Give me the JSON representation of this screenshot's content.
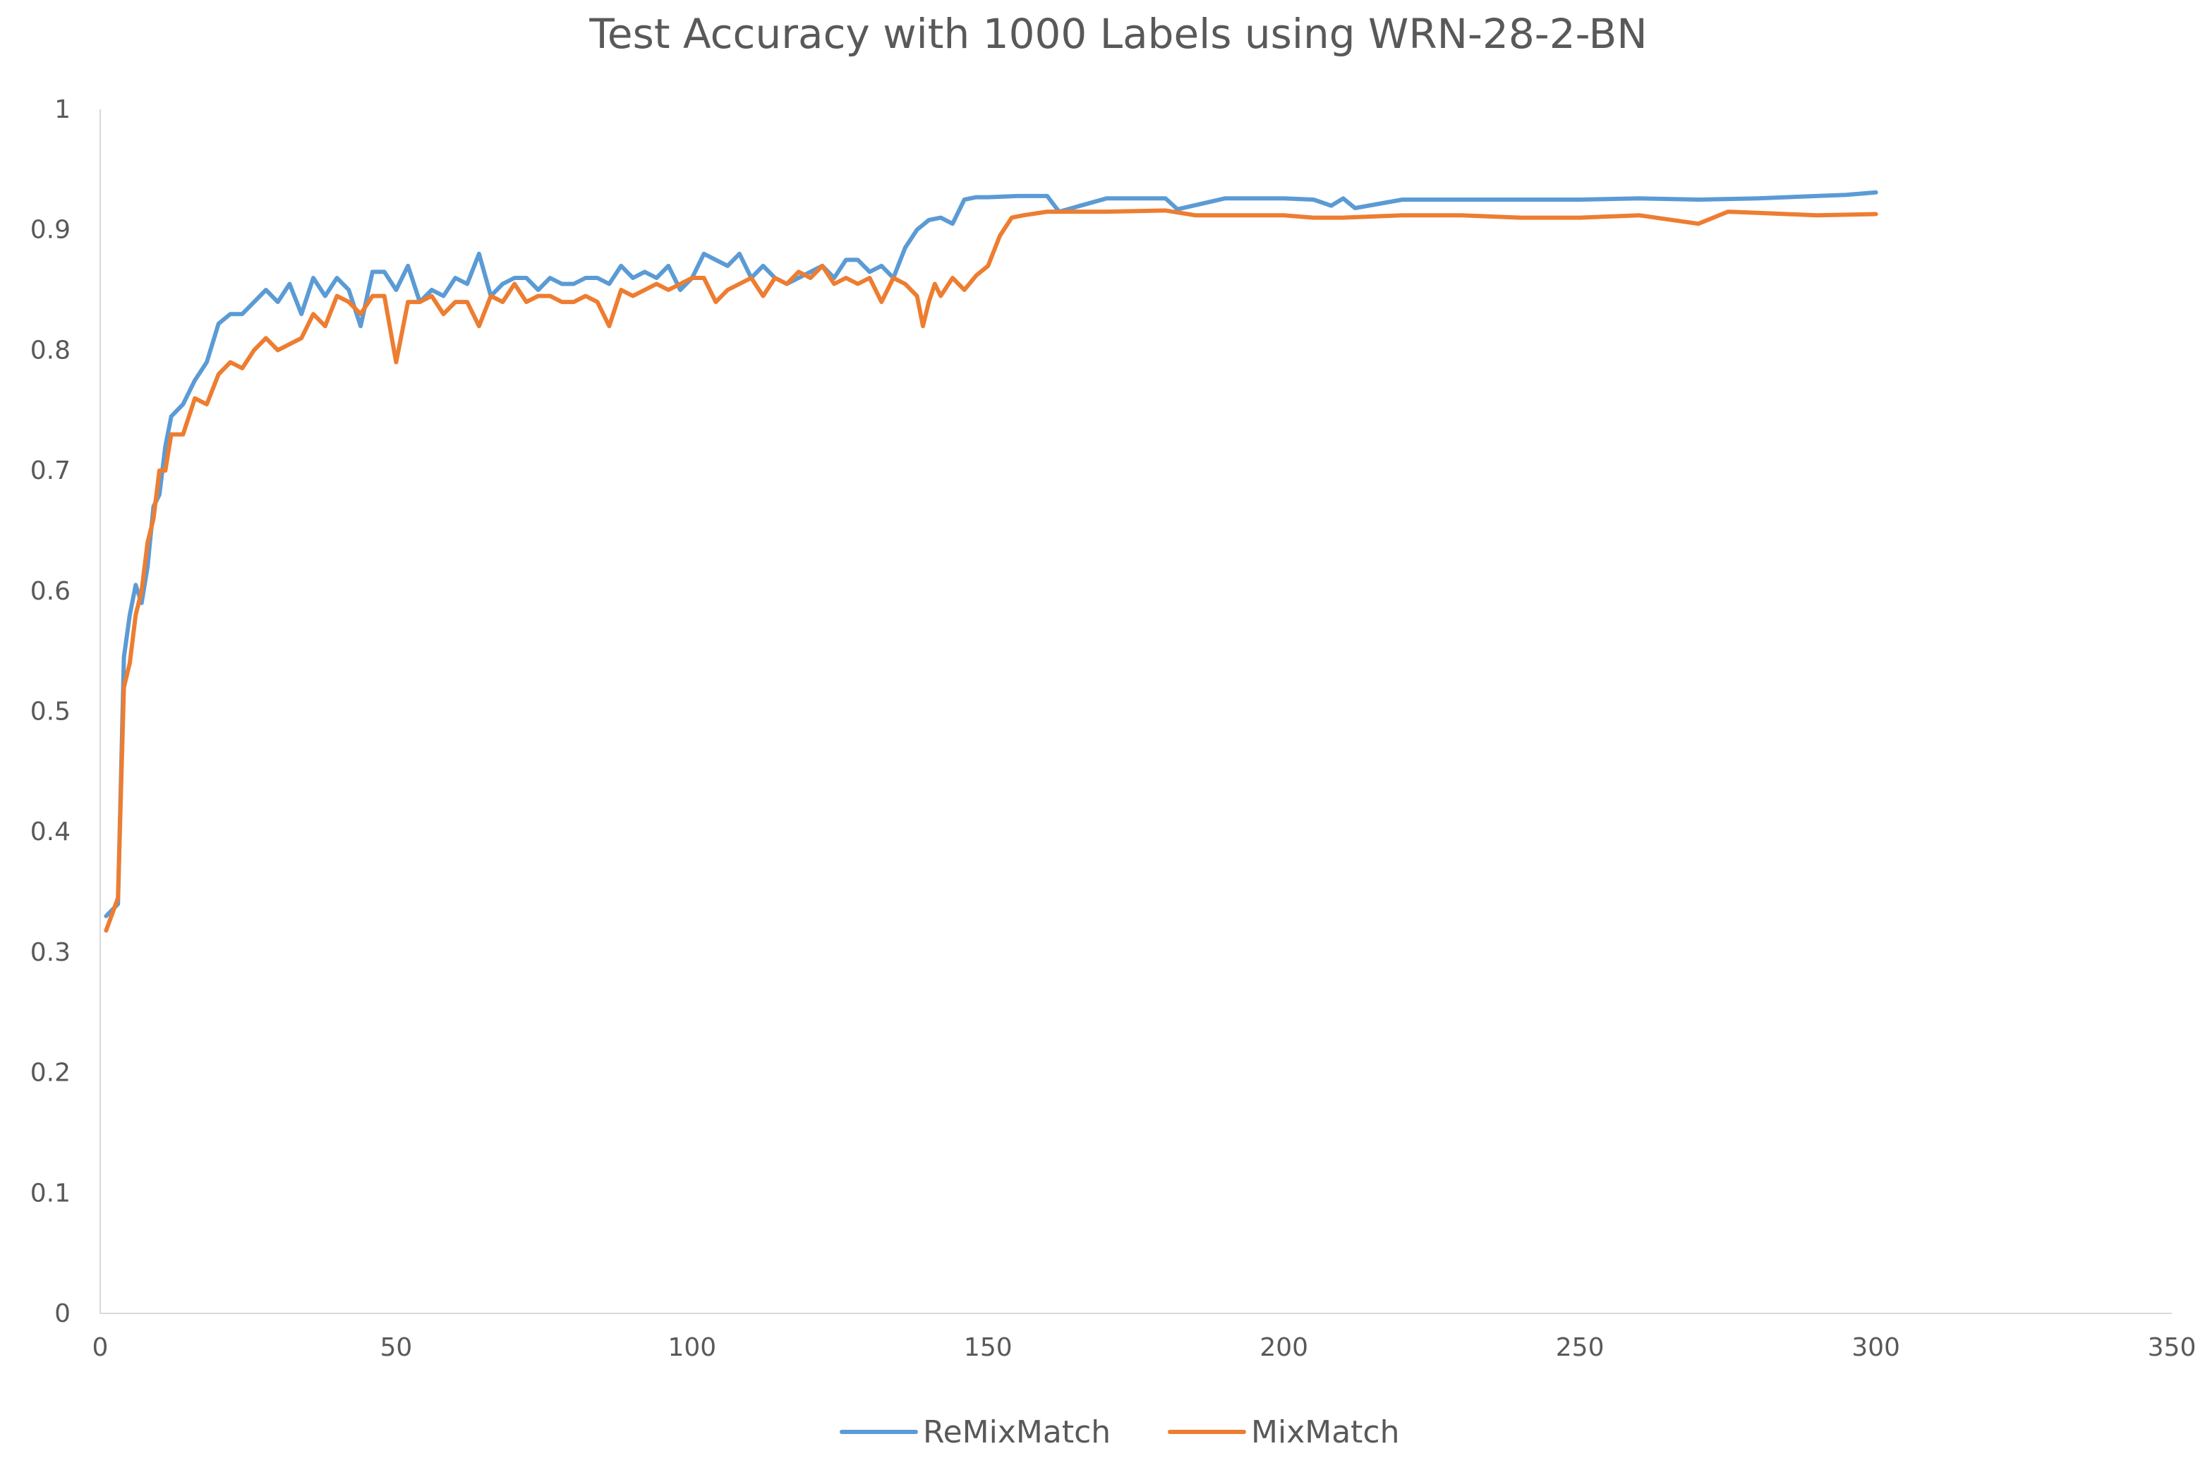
{
  "chart_data": {
    "type": "line",
    "title": "Test Accuracy with 1000 Labels using WRN-28-2-BN",
    "xlabel": "",
    "ylabel": "",
    "xlim": [
      0,
      350
    ],
    "ylim": [
      0,
      1
    ],
    "x_ticks": [
      "0",
      "50",
      "100",
      "150",
      "200",
      "250",
      "300",
      "350"
    ],
    "y_ticks": [
      "0",
      "0.1",
      "0.2",
      "0.3",
      "0.4",
      "0.5",
      "0.6",
      "0.7",
      "0.8",
      "0.9",
      "1"
    ],
    "grid": false,
    "legend_position": "bottom",
    "series": [
      {
        "name": "ReMixMatch",
        "color": "#5B9BD5",
        "x": [
          1,
          3,
          4,
          5,
          6,
          7,
          8,
          9,
          10,
          11,
          12,
          14,
          16,
          18,
          20,
          22,
          24,
          26,
          28,
          30,
          32,
          34,
          36,
          38,
          40,
          42,
          44,
          46,
          48,
          50,
          52,
          54,
          56,
          58,
          60,
          62,
          64,
          66,
          68,
          70,
          72,
          74,
          76,
          78,
          80,
          82,
          84,
          86,
          88,
          90,
          92,
          94,
          96,
          98,
          100,
          102,
          104,
          106,
          108,
          110,
          112,
          114,
          116,
          118,
          120,
          122,
          124,
          126,
          128,
          130,
          132,
          134,
          136,
          138,
          140,
          142,
          144,
          146,
          148,
          150,
          155,
          160,
          162,
          170,
          180,
          182,
          190,
          200,
          205,
          208,
          210,
          212,
          220,
          230,
          240,
          250,
          260,
          270,
          280,
          290,
          295,
          300
        ],
        "values": [
          0.33,
          0.34,
          0.545,
          0.58,
          0.605,
          0.59,
          0.62,
          0.67,
          0.68,
          0.72,
          0.745,
          0.755,
          0.775,
          0.79,
          0.822,
          0.83,
          0.83,
          0.84,
          0.85,
          0.84,
          0.855,
          0.83,
          0.86,
          0.845,
          0.86,
          0.85,
          0.82,
          0.865,
          0.865,
          0.85,
          0.87,
          0.84,
          0.85,
          0.845,
          0.86,
          0.855,
          0.88,
          0.845,
          0.855,
          0.86,
          0.86,
          0.85,
          0.86,
          0.855,
          0.855,
          0.86,
          0.86,
          0.855,
          0.87,
          0.86,
          0.865,
          0.86,
          0.87,
          0.85,
          0.86,
          0.88,
          0.875,
          0.87,
          0.88,
          0.86,
          0.87,
          0.86,
          0.855,
          0.86,
          0.865,
          0.87,
          0.86,
          0.875,
          0.875,
          0.865,
          0.87,
          0.86,
          0.885,
          0.9,
          0.908,
          0.91,
          0.905,
          0.925,
          0.927,
          0.927,
          0.928,
          0.928,
          0.915,
          0.926,
          0.926,
          0.917,
          0.926,
          0.926,
          0.925,
          0.92,
          0.926,
          0.918,
          0.925,
          0.925,
          0.925,
          0.925,
          0.926,
          0.925,
          0.926,
          0.928,
          0.929,
          0.931
        ]
      },
      {
        "name": "MixMatch",
        "color": "#ED7D31",
        "x": [
          1,
          3,
          4,
          5,
          6,
          7,
          8,
          9,
          10,
          11,
          12,
          14,
          16,
          18,
          20,
          22,
          24,
          26,
          28,
          30,
          32,
          34,
          36,
          38,
          40,
          42,
          44,
          46,
          48,
          50,
          52,
          54,
          56,
          58,
          60,
          62,
          64,
          66,
          68,
          70,
          72,
          74,
          76,
          78,
          80,
          82,
          84,
          86,
          88,
          90,
          92,
          94,
          96,
          98,
          100,
          102,
          104,
          106,
          108,
          110,
          112,
          114,
          116,
          118,
          120,
          122,
          124,
          126,
          128,
          130,
          132,
          134,
          136,
          138,
          139,
          140,
          141,
          142,
          144,
          146,
          148,
          150,
          152,
          154,
          156,
          160,
          170,
          180,
          185,
          190,
          200,
          205,
          210,
          220,
          230,
          240,
          250,
          260,
          270,
          275,
          280,
          290,
          300
        ],
        "values": [
          0.318,
          0.345,
          0.52,
          0.54,
          0.58,
          0.6,
          0.64,
          0.66,
          0.7,
          0.7,
          0.73,
          0.73,
          0.76,
          0.755,
          0.78,
          0.79,
          0.785,
          0.8,
          0.81,
          0.8,
          0.805,
          0.81,
          0.83,
          0.82,
          0.845,
          0.84,
          0.83,
          0.845,
          0.845,
          0.79,
          0.84,
          0.84,
          0.845,
          0.83,
          0.84,
          0.84,
          0.82,
          0.845,
          0.84,
          0.855,
          0.84,
          0.845,
          0.845,
          0.84,
          0.84,
          0.845,
          0.84,
          0.82,
          0.85,
          0.845,
          0.85,
          0.855,
          0.85,
          0.855,
          0.86,
          0.86,
          0.84,
          0.85,
          0.855,
          0.86,
          0.845,
          0.86,
          0.855,
          0.865,
          0.86,
          0.87,
          0.855,
          0.86,
          0.855,
          0.86,
          0.84,
          0.86,
          0.855,
          0.845,
          0.82,
          0.84,
          0.855,
          0.845,
          0.86,
          0.85,
          0.862,
          0.87,
          0.895,
          0.91,
          0.912,
          0.915,
          0.915,
          0.916,
          0.912,
          0.912,
          0.912,
          0.91,
          0.91,
          0.912,
          0.912,
          0.91,
          0.91,
          0.912,
          0.905,
          0.915,
          0.914,
          0.912,
          0.913
        ]
      }
    ]
  }
}
